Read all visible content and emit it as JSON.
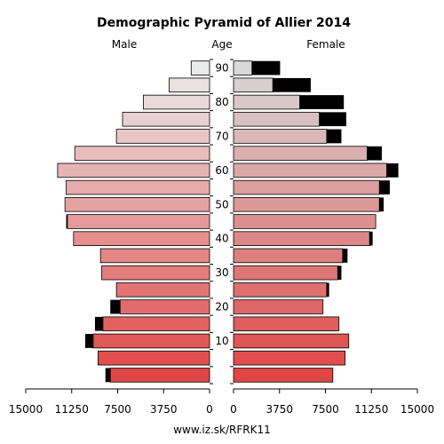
{
  "chart_data": {
    "type": "bar",
    "title": "Demographic Pyramid of Allier 2014",
    "left_label": "Male",
    "center_label": "Age",
    "right_label": "Female",
    "source": "www.iz.sk/RFRK11",
    "age_ticks": [
      "10",
      "20",
      "30",
      "40",
      "50",
      "60",
      "70",
      "80",
      "90"
    ],
    "x_ticks_left": [
      "15000",
      "11250",
      "7500",
      "3750",
      "0"
    ],
    "x_ticks_right": [
      "0",
      "3750",
      "7500",
      "11250",
      "15000"
    ],
    "xlim": [
      0,
      15000
    ],
    "age_groups": [
      "0-4",
      "5-9",
      "10-14",
      "15-19",
      "20-24",
      "25-29",
      "30-34",
      "35-39",
      "40-44",
      "45-49",
      "50-54",
      "55-59",
      "60-64",
      "65-69",
      "70-74",
      "75-79",
      "80-84",
      "85-89",
      "90+"
    ],
    "series": [
      {
        "name": "Male",
        "values": [
          8100,
          9100,
          9500,
          8700,
          7300,
          7600,
          8800,
          8900,
          11100,
          11600,
          11800,
          11700,
          12400,
          11000,
          7600,
          7100,
          5400,
          3300,
          1500
        ],
        "surplus": [
          400,
          0,
          650,
          650,
          800,
          0,
          0,
          0,
          0,
          100,
          0,
          0,
          0,
          0,
          0,
          0,
          0,
          0,
          0
        ]
      },
      {
        "name": "Female",
        "values": [
          8100,
          9100,
          9400,
          8600,
          7300,
          7600,
          8500,
          8900,
          11100,
          11600,
          11900,
          11900,
          12500,
          10900,
          7600,
          7000,
          5400,
          3200,
          1500
        ],
        "surplus": [
          0,
          0,
          0,
          0,
          0,
          200,
          300,
          400,
          250,
          0,
          350,
          850,
          950,
          1200,
          1200,
          2200,
          3600,
          3100,
          2300
        ]
      }
    ],
    "colors": {
      "surplus": "#000000",
      "outline": "#000000",
      "young": "#e04646",
      "old": "#ebebeb"
    }
  }
}
